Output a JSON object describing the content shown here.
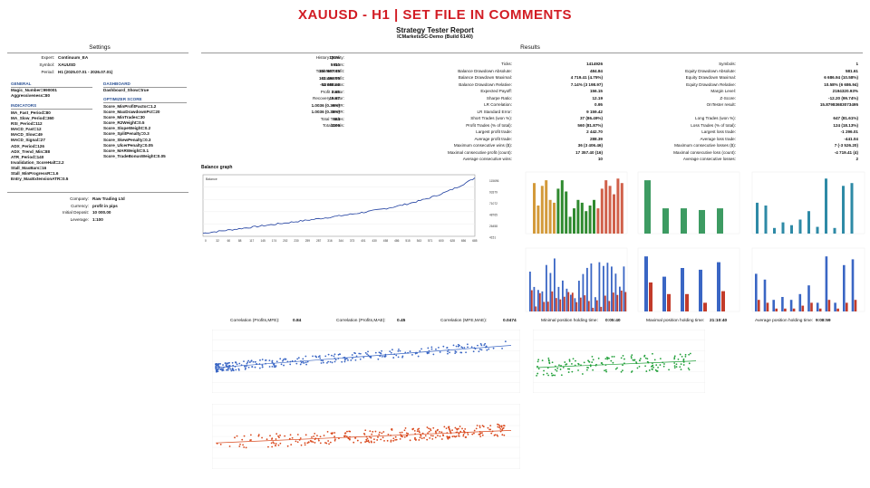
{
  "header": {
    "title": "XAUUSD - H1 | SET FILE IN COMMENTS",
    "report_title": "Strategy Tester Report",
    "report_subtitle": "ICMarketsSC-Demo (Build 6140)"
  },
  "settings": {
    "heading": "Settings",
    "rows": [
      {
        "label": "Expert:",
        "value": "Continuum_EA"
      },
      {
        "label": "Symbol:",
        "value": "XAUUSD"
      },
      {
        "label": "Period:",
        "value": "H1 (2025.07.01 - 2026.07.01)"
      }
    ],
    "general_heading": "GENERAL",
    "general": [
      "Magic_Number=990001",
      "Aggressiveness=80"
    ],
    "indicators_heading": "INDICATORS",
    "indicators": [
      "MA_Fast_Period=80",
      "MA_Slow_Period=360",
      "RSI_Period=112",
      "MACD_Fast=12",
      "MACD_Slow=49",
      "MACD_Signal=27",
      "ADX_Period=126",
      "ADX_Trend_Min=88",
      "ATR_Period=140",
      "Invalidation_ScoreHalt=2.2",
      "Stall_MaxBars=16",
      "Stall_MinProgressR=1.6",
      "Entry_MaxExtensionATR=0.5"
    ],
    "dashboard_heading": "DASHBOARD",
    "dashboard": [
      "Dashboard_Show=true"
    ],
    "optimizer_heading": "OPTIMIZER SCORE",
    "optimizer": [
      "Score_MinProfitFactor=1.2",
      "Score_MaxDrawdownPct=20",
      "Score_MinTrades=30",
      "Score_R2Weight=0.5",
      "Score_SlopeWeight=0.2",
      "Score_SplitPenalty=0.3",
      "Score_SkewPenalty=0.3",
      "Score_UlcerPenalty=0.05",
      "Score_MARWeight=0.1",
      "Score_TradeBonusWeight=0.05"
    ],
    "account": [
      {
        "label": "Company:",
        "value": "Raw Trading Ltd"
      },
      {
        "label": "Currency:",
        "value": "profit in pips"
      },
      {
        "label": "Initial Deposit:",
        "value": "10 000.00"
      },
      {
        "label": "Leverage:",
        "value": "1:100"
      }
    ]
  },
  "results": {
    "heading": "Results",
    "col1": [
      {
        "label": "History Quality:",
        "value": "100%"
      },
      {
        "label": "Bars:",
        "value": "5910"
      },
      {
        "label": "Total Net Profit:",
        "value": "106 807.45"
      },
      {
        "label": "Gross Profit:",
        "value": "161 496.05"
      },
      {
        "label": "Gross Loss:",
        "value": "-54 688.60"
      },
      {
        "label": "Profit Factor:",
        "value": "2.95"
      },
      {
        "label": "Recovery Factor:",
        "value": "15.97"
      },
      {
        "label": "AHPR:",
        "value": "1.0036 (0.36%)"
      },
      {
        "label": "GHPR:",
        "value": "1.0036 (0.36%)"
      },
      {
        "label": "Total Trades:",
        "value": "684"
      },
      {
        "label": "Total Deals:",
        "value": "1109"
      }
    ],
    "col2": [
      {
        "label": "Ticks:",
        "value": "1414926"
      },
      {
        "label": "Balance Drawdown Absolute:",
        "value": "484.84"
      },
      {
        "label": "Balance Drawdown Maximal:",
        "value": "4 719.41 (4.75%)"
      },
      {
        "label": "Balance Drawdown Relative:",
        "value": "7.14% (3 198.97)"
      },
      {
        "label": "Expected Payoff:",
        "value": "156.15"
      },
      {
        "label": "Sharpe Ratio:",
        "value": "12.19"
      },
      {
        "label": "LR Correlation:",
        "value": "0.95"
      },
      {
        "label": "LR Standard Error:",
        "value": "9 159.42"
      },
      {
        "label": "Short Trades (won %):",
        "value": "37 (86.49%)"
      },
      {
        "label": "Profit Trades (% of total):",
        "value": "560 (81.87%)"
      },
      {
        "label": "Largest profit trade:",
        "value": "2 442.70"
      },
      {
        "label": "Average profit trade:",
        "value": "288.39"
      },
      {
        "label": "Maximum consecutive wins ($):",
        "value": "36 (3 406.46)"
      },
      {
        "label": "Maximal consecutive profit (count):",
        "value": "17 357.40 (16)"
      },
      {
        "label": "Average consecutive wins:",
        "value": "10"
      }
    ],
    "col3": [
      {
        "label": "Symbols:",
        "value": "1"
      },
      {
        "label": "Equity Drawdown Absolute:",
        "value": "581.61"
      },
      {
        "label": "Equity Drawdown Maximal:",
        "value": "6 686.94 (10.58%)"
      },
      {
        "label": "Equity Drawdown Relative:",
        "value": "10.58% (6 686.94)"
      },
      {
        "label": "Margin Level:",
        "value": "2194320.93%"
      },
      {
        "label": "Z-Score:",
        "value": "-12.20 (99.74%)"
      },
      {
        "label": "OnTester result:",
        "value": "15.87983683073495"
      },
      {
        "label": "",
        "value": ""
      },
      {
        "label": "Long Trades (won %):",
        "value": "647 (81.61%)"
      },
      {
        "label": "Loss Trades (% of total):",
        "value": "124 (18.13%)"
      },
      {
        "label": "Largest loss trade:",
        "value": "-1 296.01"
      },
      {
        "label": "Average loss trade:",
        "value": "-441.04"
      },
      {
        "label": "Maximum consecutive losses ($):",
        "value": "7 (-3 526.20)"
      },
      {
        "label": "Maximal consecutive loss (count):",
        "value": "-4 719.41 (4)"
      },
      {
        "label": "Average consecutive losses:",
        "value": "2"
      }
    ]
  },
  "balance_graph": {
    "heading": "Balance graph",
    "legend": "Balance",
    "y_ticks": [
      "115696",
      "93379",
      "71072",
      "48765",
      "26458",
      "4151"
    ],
    "x_ticks": [
      "0",
      "32",
      "60",
      "88",
      "117",
      "145",
      "174",
      "202",
      "230",
      "259",
      "287",
      "316",
      "344",
      "373",
      "401",
      "430",
      "458",
      "486",
      "515",
      "543",
      "571",
      "600",
      "628",
      "656",
      "685"
    ]
  },
  "correlation": [
    {
      "label": "Correlation (Profits,MFE):",
      "value": "0.84"
    },
    {
      "label": "Correlation (Profits,MAE):",
      "value": "0.45"
    },
    {
      "label": "Correlation (MFE,MAE):",
      "value": "0.0474"
    },
    {
      "label": "Minimal position holding time:",
      "value": "0:05:40"
    },
    {
      "label": "Maximal position holding time:",
      "value": "21:10:40"
    },
    {
      "label": "Average position holding time:",
      "value": "9:08:59"
    }
  ],
  "colors": {
    "title_red": "#d21c24",
    "section_blue": "#2f5597",
    "mfe_blue": "#3a66c4",
    "mae_red": "#d9481c",
    "holding_green": "#22a03a"
  }
}
